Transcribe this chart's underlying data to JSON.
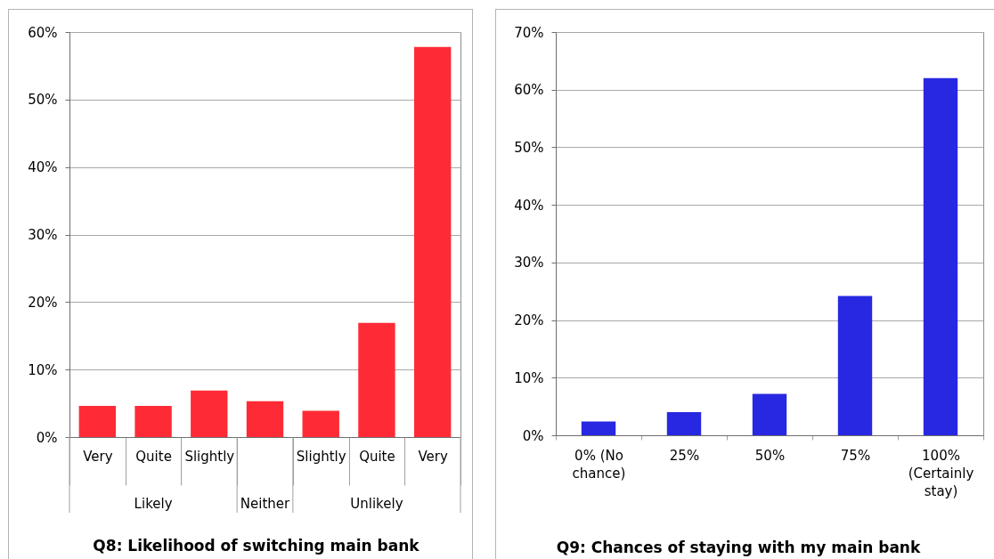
{
  "chart_data": [
    {
      "type": "bar",
      "title": "Q8: Likelihood of switching main bank",
      "categories": [
        "Very",
        "Quite",
        "Slightly",
        null,
        "Slightly",
        "Quite",
        "Very"
      ],
      "values": [
        4.6,
        4.6,
        6.9,
        5.3,
        3.9,
        16.9,
        57.8
      ],
      "color": "#fe2b36",
      "ylim": [
        0,
        60
      ],
      "yticks": [
        {
          "value": 0,
          "label": "0%"
        },
        {
          "value": 10,
          "label": "10%"
        },
        {
          "value": 20,
          "label": "20%"
        },
        {
          "value": 30,
          "label": "30%"
        },
        {
          "value": 40,
          "label": "40%"
        },
        {
          "value": 50,
          "label": "50%"
        },
        {
          "value": 60,
          "label": "60%"
        }
      ],
      "grid": "y",
      "annotations": [
        "Likely",
        "Neither",
        "Unlikely"
      ]
    },
    {
      "type": "bar",
      "title": "Q9: Chances of staying with my main bank",
      "categories": [
        "0% (No chance)",
        "25%",
        "50%",
        "75%",
        "100% (Certainly stay)"
      ],
      "values": [
        2.4,
        4.0,
        7.2,
        24.2,
        62.0
      ],
      "color": "#2828e2",
      "ylim": [
        0,
        70
      ],
      "yticks": [
        {
          "value": 0,
          "label": "0%"
        },
        {
          "value": 10,
          "label": "10%"
        },
        {
          "value": 20,
          "label": "20%"
        },
        {
          "value": 30,
          "label": "30%"
        },
        {
          "value": 40,
          "label": "40%"
        },
        {
          "value": 50,
          "label": "50%"
        },
        {
          "value": 60,
          "label": "60%"
        },
        {
          "value": 70,
          "label": "70%"
        }
      ],
      "grid": "y"
    }
  ]
}
